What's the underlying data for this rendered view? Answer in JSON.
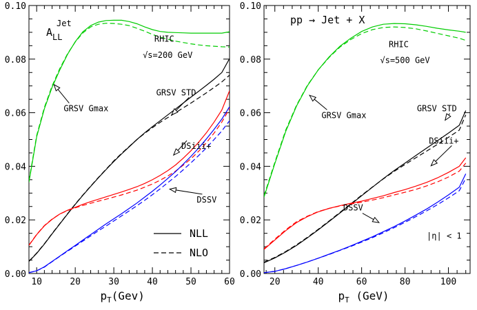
{
  "chart_data": [
    {
      "type": "line",
      "panel": "left",
      "xlabel_main": "p",
      "xlabel_sub": "T",
      "xlabel_rest": "(Gev)",
      "ylabel": "",
      "xlim": [
        8,
        60
      ],
      "ylim": [
        0,
        0.1
      ],
      "xticks": [
        10,
        20,
        30,
        40,
        50,
        60
      ],
      "yticks": [
        0.0,
        0.02,
        0.04,
        0.06,
        0.08,
        0.1
      ],
      "ytick_labels": [
        "0.00",
        "0.02",
        "0.04",
        "0.06",
        "0.08",
        "0.10"
      ],
      "grid": false,
      "title_main": "A",
      "title_sup": "Jet",
      "title_sub": "LL",
      "annotations": [
        {
          "id": "rhic",
          "text": "RHIC",
          "x": 40.5,
          "y": 0.0865
        },
        {
          "id": "energy",
          "text": "√s=200 GeV",
          "x": 37.5,
          "y": 0.0805
        },
        {
          "id": "gmax",
          "text": "GRSV Gmax",
          "x": 17.0,
          "y": 0.0605,
          "arrow_to": [
            14.5,
            0.0705
          ]
        },
        {
          "id": "std",
          "text": "GRSV STD",
          "x": 41.0,
          "y": 0.0665,
          "arrow_to": [
            45.0,
            0.0592
          ]
        },
        {
          "id": "dsiii",
          "text": "DSiii+",
          "x": 47.5,
          "y": 0.0465,
          "arrow_to": [
            45.5,
            0.0442
          ]
        },
        {
          "id": "dssv",
          "text": "DSSV",
          "x": 51.5,
          "y": 0.0265,
          "arrow_to": [
            44.5,
            0.0315
          ]
        }
      ],
      "legend": {
        "position": "bottom-right",
        "entries": [
          {
            "label": "NLL",
            "style": "solid"
          },
          {
            "label": "NLO",
            "style": "dashed"
          }
        ]
      },
      "series": [
        {
          "color": "#00cc00",
          "style": "solid",
          "x": [
            8,
            10,
            12,
            14,
            16,
            18,
            20,
            22,
            24,
            26,
            28,
            30,
            32,
            34,
            36,
            38,
            40,
            42,
            44,
            46,
            48,
            50,
            52,
            54,
            56,
            58,
            60
          ],
          "values": [
            0.034,
            0.051,
            0.0615,
            0.0695,
            0.076,
            0.0818,
            0.0865,
            0.0902,
            0.0925,
            0.0938,
            0.0944,
            0.0945,
            0.0945,
            0.094,
            0.0932,
            0.092,
            0.091,
            0.0903,
            0.09,
            0.0899,
            0.0898,
            0.0897,
            0.0897,
            0.0897,
            0.0897,
            0.0897,
            0.0902
          ]
        },
        {
          "color": "#00cc00",
          "style": "dashed",
          "x": [
            8,
            10,
            12,
            14,
            16,
            18,
            20,
            22,
            24,
            26,
            28,
            30,
            32,
            34,
            36,
            38,
            40,
            42,
            44,
            46,
            48,
            50,
            52,
            54,
            56,
            58,
            60
          ],
          "values": [
            0.0345,
            0.0515,
            0.062,
            0.07,
            0.0765,
            0.082,
            0.0864,
            0.0898,
            0.092,
            0.093,
            0.0934,
            0.0933,
            0.093,
            0.0925,
            0.0915,
            0.0904,
            0.0892,
            0.0882,
            0.0874,
            0.0867,
            0.0862,
            0.0857,
            0.0853,
            0.085,
            0.0848,
            0.0846,
            0.0845
          ]
        },
        {
          "color": "#000000",
          "style": "solid",
          "x": [
            8,
            10,
            12,
            14,
            16,
            18,
            20,
            22,
            24,
            26,
            28,
            30,
            32,
            34,
            36,
            38,
            40,
            42,
            44,
            46,
            48,
            50,
            52,
            54,
            56,
            58,
            60
          ],
          "values": [
            0.0045,
            0.0075,
            0.011,
            0.0148,
            0.0185,
            0.0222,
            0.0258,
            0.0292,
            0.0325,
            0.0357,
            0.0388,
            0.0418,
            0.0446,
            0.0473,
            0.05,
            0.0525,
            0.0548,
            0.057,
            0.0592,
            0.0614,
            0.0636,
            0.0658,
            0.068,
            0.0702,
            0.0725,
            0.075,
            0.0802
          ]
        },
        {
          "color": "#000000",
          "style": "dashed",
          "x": [
            8,
            10,
            12,
            14,
            16,
            18,
            20,
            22,
            24,
            26,
            28,
            30,
            32,
            34,
            36,
            38,
            40,
            42,
            44,
            46,
            48,
            50,
            52,
            54,
            56,
            58,
            60
          ],
          "values": [
            0.0046,
            0.0076,
            0.0111,
            0.0149,
            0.0186,
            0.0223,
            0.0259,
            0.0293,
            0.0326,
            0.0358,
            0.0389,
            0.042,
            0.0448,
            0.0474,
            0.05,
            0.0523,
            0.0544,
            0.0564,
            0.0582,
            0.06,
            0.0618,
            0.0636,
            0.0655,
            0.0674,
            0.0694,
            0.0715,
            0.074
          ]
        },
        {
          "color": "#ff0000",
          "style": "solid",
          "x": [
            8,
            10,
            12,
            14,
            16,
            18,
            20,
            22,
            24,
            26,
            28,
            30,
            32,
            34,
            36,
            38,
            40,
            42,
            44,
            46,
            48,
            50,
            52,
            54,
            56,
            58,
            60
          ],
          "values": [
            0.0105,
            0.0145,
            0.0178,
            0.0202,
            0.0222,
            0.0236,
            0.0247,
            0.0258,
            0.0268,
            0.0277,
            0.0286,
            0.0295,
            0.0304,
            0.0314,
            0.0324,
            0.0336,
            0.035,
            0.0366,
            0.0384,
            0.0405,
            0.043,
            0.0458,
            0.049,
            0.0525,
            0.0565,
            0.061,
            0.0682
          ]
        },
        {
          "color": "#ff0000",
          "style": "dashed",
          "x": [
            8,
            10,
            12,
            14,
            16,
            18,
            20,
            22,
            24,
            26,
            28,
            30,
            32,
            34,
            36,
            38,
            40,
            42,
            44,
            46,
            48,
            50,
            52,
            54,
            56,
            58,
            60
          ],
          "values": [
            0.0106,
            0.0146,
            0.0179,
            0.0203,
            0.0222,
            0.0235,
            0.0245,
            0.0254,
            0.0262,
            0.027,
            0.0277,
            0.0285,
            0.0293,
            0.0302,
            0.0311,
            0.0322,
            0.0334,
            0.0348,
            0.0364,
            0.0382,
            0.0404,
            0.0428,
            0.0456,
            0.0488,
            0.0524,
            0.0565,
            0.0615
          ]
        },
        {
          "color": "#0000ff",
          "style": "solid",
          "x": [
            8,
            10,
            12,
            14,
            16,
            18,
            20,
            22,
            24,
            26,
            28,
            30,
            32,
            34,
            36,
            38,
            40,
            42,
            44,
            46,
            48,
            50,
            52,
            54,
            56,
            58,
            60
          ],
          "values": [
            0.0003,
            0.001,
            0.0025,
            0.0045,
            0.0065,
            0.0085,
            0.0105,
            0.0125,
            0.0145,
            0.0165,
            0.0185,
            0.0204,
            0.0223,
            0.0243,
            0.0263,
            0.0285,
            0.0307,
            0.033,
            0.0355,
            0.038,
            0.0408,
            0.0437,
            0.0468,
            0.0502,
            0.0538,
            0.0576,
            0.0622
          ]
        },
        {
          "color": "#0000ff",
          "style": "dashed",
          "x": [
            8,
            10,
            12,
            14,
            16,
            18,
            20,
            22,
            24,
            26,
            28,
            30,
            32,
            34,
            36,
            38,
            40,
            42,
            44,
            46,
            48,
            50,
            52,
            54,
            56,
            58,
            60
          ],
          "values": [
            0.0003,
            0.001,
            0.0024,
            0.0044,
            0.0064,
            0.0083,
            0.0102,
            0.0121,
            0.014,
            0.0159,
            0.0177,
            0.0196,
            0.0215,
            0.0234,
            0.0253,
            0.0273,
            0.0294,
            0.0316,
            0.0339,
            0.0362,
            0.0387,
            0.0413,
            0.044,
            0.0469,
            0.05,
            0.0532,
            0.057
          ]
        }
      ]
    },
    {
      "type": "line",
      "panel": "right",
      "xlabel_main": "p",
      "xlabel_sub": "T",
      "xlabel_rest": " (GeV)",
      "ylabel": "",
      "xlim": [
        15,
        110
      ],
      "ylim": [
        0,
        0.1
      ],
      "xticks": [
        20,
        40,
        60,
        80,
        100
      ],
      "yticks": [
        0.0,
        0.02,
        0.04,
        0.06,
        0.08,
        0.1
      ],
      "ytick_labels": [
        "0.00",
        "0.02",
        "0.04",
        "0.06",
        "0.08",
        "0.10"
      ],
      "grid": false,
      "title_text": "pp → Jet + X",
      "annotations": [
        {
          "id": "rhic",
          "text": "RHIC",
          "x": 72.5,
          "y": 0.0845
        },
        {
          "id": "energy",
          "text": "√s=500 GeV",
          "x": 68.5,
          "y": 0.0785
        },
        {
          "id": "gmax",
          "text": "GRSV Gmax",
          "x": 41.5,
          "y": 0.058,
          "arrow_to": [
            36.0,
            0.0665
          ]
        },
        {
          "id": "std",
          "text": "GRSV STD",
          "x": 85.5,
          "y": 0.0605,
          "arrow_to": [
            98.5,
            0.0572
          ]
        },
        {
          "id": "dsiii",
          "text": "DSiii+",
          "x": 91.0,
          "y": 0.0485,
          "arrow_to": [
            92.0,
            0.0402
          ]
        },
        {
          "id": "dssv",
          "text": "DSSV",
          "x": 51.5,
          "y": 0.0235,
          "arrow_to": [
            68.0,
            0.019
          ]
        },
        {
          "id": "eta",
          "text": "|η| < 1",
          "x": 90.0,
          "y": 0.013
        }
      ],
      "series": [
        {
          "color": "#00cc00",
          "style": "solid",
          "x": [
            15,
            20,
            25,
            30,
            35,
            40,
            45,
            50,
            55,
            60,
            65,
            70,
            75,
            80,
            85,
            90,
            95,
            100,
            105,
            108
          ],
          "values": [
            0.0285,
            0.041,
            0.053,
            0.0625,
            0.07,
            0.076,
            0.0808,
            0.0848,
            0.0878,
            0.0903,
            0.092,
            0.093,
            0.0933,
            0.0932,
            0.0928,
            0.0922,
            0.0915,
            0.0909,
            0.0904,
            0.09
          ]
        },
        {
          "color": "#00cc00",
          "style": "dashed",
          "x": [
            15,
            20,
            25,
            30,
            35,
            40,
            45,
            50,
            55,
            60,
            65,
            70,
            75,
            80,
            85,
            90,
            95,
            100,
            105,
            108
          ],
          "values": [
            0.029,
            0.0415,
            0.0535,
            0.0628,
            0.0702,
            0.076,
            0.0806,
            0.0845,
            0.0873,
            0.0895,
            0.091,
            0.0918,
            0.092,
            0.0918,
            0.0913,
            0.0905,
            0.0896,
            0.0887,
            0.0878,
            0.087
          ]
        },
        {
          "color": "#000000",
          "style": "solid",
          "x": [
            15,
            20,
            25,
            30,
            35,
            40,
            45,
            50,
            55,
            60,
            65,
            70,
            75,
            80,
            85,
            90,
            95,
            100,
            105,
            108
          ],
          "values": [
            0.004,
            0.0058,
            0.008,
            0.0105,
            0.0133,
            0.0163,
            0.0194,
            0.0226,
            0.0258,
            0.029,
            0.0322,
            0.0354,
            0.0384,
            0.0412,
            0.044,
            0.0468,
            0.0496,
            0.0524,
            0.0553,
            0.0608
          ]
        },
        {
          "color": "#000000",
          "style": "dashed",
          "x": [
            15,
            20,
            25,
            30,
            35,
            40,
            45,
            50,
            55,
            60,
            65,
            70,
            75,
            80,
            85,
            90,
            95,
            100,
            105,
            108
          ],
          "values": [
            0.0042,
            0.006,
            0.0082,
            0.0107,
            0.0135,
            0.0165,
            0.0196,
            0.0228,
            0.026,
            0.0292,
            0.0323,
            0.0353,
            0.0381,
            0.0407,
            0.0432,
            0.0457,
            0.0482,
            0.0508,
            0.0535,
            0.0592
          ]
        },
        {
          "color": "#ff0000",
          "style": "solid",
          "x": [
            15,
            20,
            25,
            30,
            35,
            40,
            45,
            50,
            55,
            60,
            65,
            70,
            75,
            80,
            85,
            90,
            95,
            100,
            105,
            108
          ],
          "values": [
            0.009,
            0.0125,
            0.016,
            0.019,
            0.0212,
            0.023,
            0.0243,
            0.0253,
            0.0262,
            0.027,
            0.028,
            0.029,
            0.0302,
            0.0313,
            0.0326,
            0.034,
            0.0357,
            0.0377,
            0.04,
            0.0432
          ]
        },
        {
          "color": "#ff0000",
          "style": "dashed",
          "x": [
            15,
            20,
            25,
            30,
            35,
            40,
            45,
            50,
            55,
            60,
            65,
            70,
            75,
            80,
            85,
            90,
            95,
            100,
            105,
            108
          ],
          "values": [
            0.0092,
            0.0128,
            0.0163,
            0.0193,
            0.0214,
            0.0231,
            0.0243,
            0.0252,
            0.0259,
            0.0266,
            0.0274,
            0.0283,
            0.0293,
            0.0303,
            0.0314,
            0.0327,
            0.0342,
            0.036,
            0.0382,
            0.0412
          ]
        },
        {
          "color": "#0000ff",
          "style": "solid",
          "x": [
            15,
            20,
            25,
            30,
            35,
            40,
            45,
            50,
            55,
            60,
            65,
            70,
            75,
            80,
            85,
            90,
            95,
            100,
            105,
            108
          ],
          "values": [
            0.0003,
            0.0008,
            0.0018,
            0.003,
            0.0043,
            0.0057,
            0.0072,
            0.0087,
            0.0103,
            0.012,
            0.0137,
            0.0156,
            0.0175,
            0.0196,
            0.0218,
            0.0241,
            0.0266,
            0.0293,
            0.0322,
            0.0372
          ]
        },
        {
          "color": "#0000ff",
          "style": "dashed",
          "x": [
            15,
            20,
            25,
            30,
            35,
            40,
            45,
            50,
            55,
            60,
            65,
            70,
            75,
            80,
            85,
            90,
            95,
            100,
            105,
            108
          ],
          "values": [
            0.0003,
            0.0008,
            0.0018,
            0.003,
            0.0043,
            0.0057,
            0.0071,
            0.0086,
            0.0101,
            0.0117,
            0.0134,
            0.0152,
            0.0171,
            0.0191,
            0.0212,
            0.0234,
            0.0257,
            0.0282,
            0.0309,
            0.0355
          ]
        }
      ]
    }
  ]
}
